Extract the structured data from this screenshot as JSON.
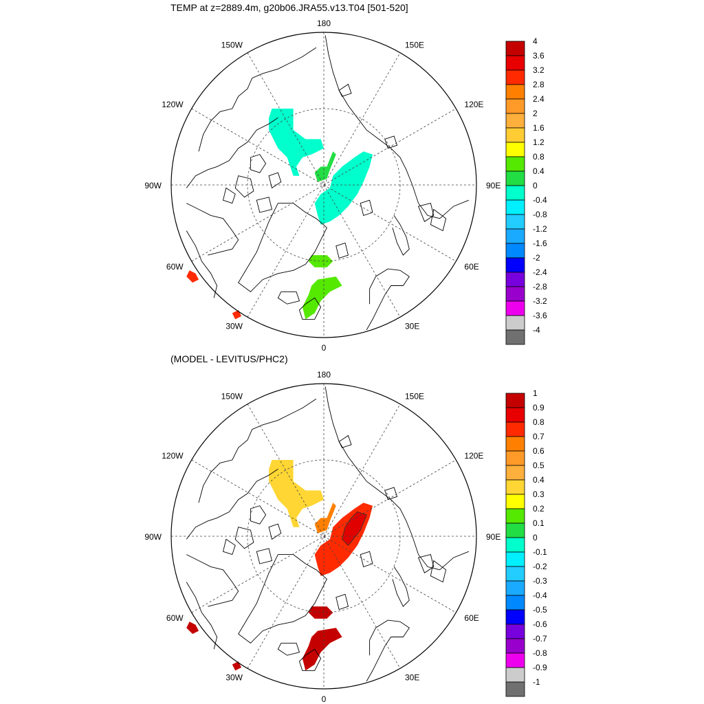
{
  "panels": [
    {
      "id": "top",
      "title": "TEMP at z=2889.4m, g20b06.JRA55.v13.T04 [501-520]",
      "lon_labels": [
        "180",
        "150E",
        "120E",
        "90E",
        "60E",
        "30E",
        "0",
        "30W",
        "60W",
        "90W",
        "120W",
        "150W"
      ],
      "colorbar": {
        "labels": [
          "4",
          "3.6",
          "3.2",
          "2.8",
          "2.4",
          "2",
          "1.6",
          "1.2",
          "0.8",
          "0.4",
          "0",
          "-0.4",
          "-0.8",
          "-1.2",
          "-1.6",
          "-2",
          "-2.4",
          "-2.8",
          "-3.2",
          "-3.6",
          "-4"
        ],
        "colors": [
          "#c40000",
          "#e80000",
          "#ff2a00",
          "#ff8000",
          "#ff9a28",
          "#ffb03c",
          "#ffcc33",
          "#ffff00",
          "#55e800",
          "#22dd44",
          "#00ffcc",
          "#00f0ff",
          "#22ccff",
          "#1aaaff",
          "#0088ff",
          "#0000ff",
          "#7700dd",
          "#9900cc",
          "#ee00ee",
          "#cccccc",
          "#707070"
        ]
      },
      "field_colors": {
        "beaufort": "#00ffcc",
        "eurasian": "#00ffcc",
        "lomonosov": "#22dd44",
        "fram": "#55e800",
        "greenland": "#55e800",
        "labrador_sw": "#ff2a00",
        "labrador_s": "#ff2a00"
      }
    },
    {
      "id": "bottom",
      "title": "(MODEL - LEVITUS/PHC2)",
      "lon_labels": [
        "180",
        "150E",
        "120E",
        "90E",
        "60E",
        "30E",
        "0",
        "30W",
        "60W",
        "90W",
        "120W",
        "150W"
      ],
      "colorbar": {
        "labels": [
          "1",
          "0.9",
          "0.8",
          "0.7",
          "0.6",
          "0.5",
          "0.4",
          "0.3",
          "0.2",
          "0.1",
          "0",
          "-0.1",
          "-0.2",
          "-0.3",
          "-0.4",
          "-0.5",
          "-0.6",
          "-0.7",
          "-0.8",
          "-0.9",
          "-1"
        ],
        "colors": [
          "#c40000",
          "#e80000",
          "#ff2a00",
          "#ff8000",
          "#ff9a28",
          "#ffb03c",
          "#ffd633",
          "#ffff00",
          "#55e800",
          "#22dd44",
          "#00ffcc",
          "#00f0ff",
          "#22ccff",
          "#1aaaff",
          "#0088ff",
          "#0000ff",
          "#7700dd",
          "#9900cc",
          "#ee00ee",
          "#cccccc",
          "#707070"
        ]
      },
      "field_colors": {
        "beaufort": "#ffd633",
        "eurasian": "#ff2a00",
        "eurasian_core": "#e00000",
        "lomonosov": "#ff8000",
        "fram": "#c40000",
        "greenland": "#c40000",
        "labrador_sw": "#c40000",
        "labrador_s": "#c40000"
      }
    }
  ],
  "coastline_color": "#000000",
  "grid_style": "dashed"
}
